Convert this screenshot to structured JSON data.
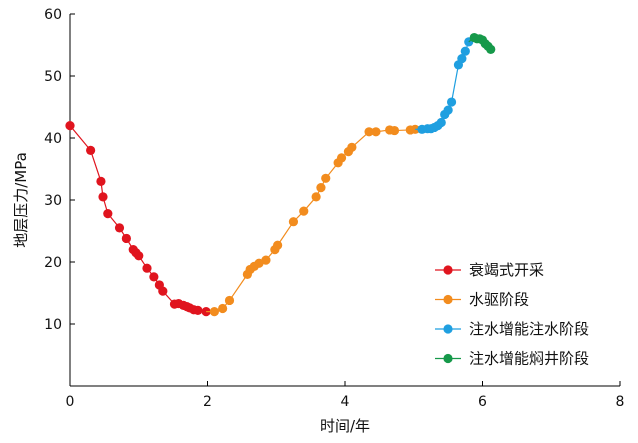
{
  "chart_data": {
    "type": "scatter",
    "title": "",
    "xlabel": "时间/年",
    "ylabel": "地层压力/MPa",
    "xlim": [
      0,
      8
    ],
    "ylim": [
      0,
      60
    ],
    "x_ticks": [
      0,
      2,
      4,
      6,
      8
    ],
    "y_ticks": [
      10,
      20,
      30,
      40,
      50,
      60
    ],
    "grid": false,
    "legend_position": "bottom-right",
    "series": [
      {
        "name": "衰竭式开采",
        "color": "#e0141e",
        "x": [
          0.0,
          0.3,
          0.45,
          0.48,
          0.55,
          0.72,
          0.82,
          0.92,
          0.96,
          1.0,
          1.12,
          1.22,
          1.3,
          1.35,
          1.52,
          1.58,
          1.65,
          1.7,
          1.74,
          1.8,
          1.86,
          1.98
        ],
        "y": [
          42.0,
          38.0,
          33.0,
          30.5,
          27.8,
          25.5,
          23.8,
          22.0,
          21.5,
          21.0,
          19.0,
          17.6,
          16.3,
          15.3,
          13.2,
          13.3,
          13.0,
          12.8,
          12.6,
          12.3,
          12.2,
          12.0
        ]
      },
      {
        "name": "水驱阶段",
        "color": "#f28c1e",
        "x": [
          2.1,
          2.22,
          2.32,
          2.58,
          2.62,
          2.68,
          2.75,
          2.85,
          2.98,
          3.02,
          3.25,
          3.4,
          3.58,
          3.65,
          3.72,
          3.9,
          3.95,
          4.05,
          4.1,
          4.35,
          4.45,
          4.65,
          4.72,
          4.95,
          5.02
        ],
        "y": [
          12.0,
          12.5,
          13.8,
          18.0,
          18.8,
          19.3,
          19.8,
          20.3,
          22.0,
          22.7,
          26.5,
          28.2,
          30.5,
          32.0,
          33.5,
          36.0,
          36.8,
          37.8,
          38.5,
          41.0,
          41.0,
          41.3,
          41.2,
          41.3,
          41.4
        ]
      },
      {
        "name": "注水增能注水阶段",
        "color": "#1f9fe0",
        "x": [
          5.12,
          5.2,
          5.25,
          5.3,
          5.35,
          5.4,
          5.45,
          5.5,
          5.55,
          5.65,
          5.7,
          5.75,
          5.8
        ],
        "y": [
          41.4,
          41.5,
          41.5,
          41.7,
          42.0,
          42.5,
          43.8,
          44.5,
          45.8,
          51.8,
          52.8,
          54.0,
          55.5
        ]
      },
      {
        "name": "注水增能焖井阶段",
        "color": "#16994a",
        "x": [
          5.88,
          5.92,
          5.96,
          6.0,
          6.04,
          6.08,
          6.12
        ],
        "y": [
          56.2,
          56.0,
          56.0,
          55.8,
          55.2,
          54.8,
          54.3
        ]
      }
    ]
  }
}
